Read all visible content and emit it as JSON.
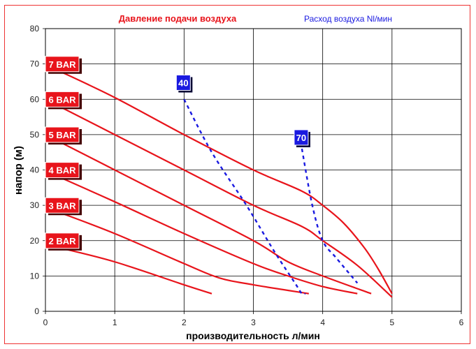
{
  "chart_data": {
    "type": "line",
    "legend": {
      "pressure_title": "Давление подачи воздуха",
      "flow_title": "Расход воздуха Nl/мин",
      "pressure_color": "#e8141b",
      "flow_color": "#1a1ae0"
    },
    "xlabel": "производительность л/мин",
    "ylabel": "напор (м)",
    "xlim": [
      0,
      6
    ],
    "ylim": [
      0,
      80
    ],
    "xticks": [
      "0",
      "1",
      "2",
      "3",
      "4",
      "5",
      "6"
    ],
    "yticks": [
      "0",
      "10",
      "20",
      "30",
      "40",
      "50",
      "60",
      "70",
      "80"
    ],
    "grid": true,
    "pressure_series": [
      {
        "name": "7 BAR",
        "points": [
          [
            0.2,
            68
          ],
          [
            1,
            60.5
          ],
          [
            2,
            50
          ],
          [
            3,
            40
          ],
          [
            3.7,
            34
          ],
          [
            4,
            30
          ],
          [
            4.3,
            25
          ],
          [
            4.6,
            18
          ],
          [
            4.8,
            12
          ],
          [
            5,
            5
          ]
        ]
      },
      {
        "name": "6 BAR",
        "points": [
          [
            0.2,
            58
          ],
          [
            1,
            50
          ],
          [
            2,
            40
          ],
          [
            3,
            30
          ],
          [
            3.7,
            24
          ],
          [
            4,
            20
          ],
          [
            4.5,
            13
          ],
          [
            5,
            4
          ]
        ]
      },
      {
        "name": "5 BAR",
        "points": [
          [
            0.2,
            48
          ],
          [
            1,
            40
          ],
          [
            2,
            30
          ],
          [
            3,
            20
          ],
          [
            3.5,
            14
          ],
          [
            4,
            10
          ],
          [
            4.7,
            5
          ]
        ]
      },
      {
        "name": "4 BAR",
        "points": [
          [
            0.2,
            38
          ],
          [
            1,
            31
          ],
          [
            2,
            22
          ],
          [
            3,
            13.5
          ],
          [
            3.5,
            10
          ],
          [
            4,
            7
          ],
          [
            4.5,
            5
          ]
        ]
      },
      {
        "name": "3 BAR",
        "points": [
          [
            0.2,
            28
          ],
          [
            1,
            22
          ],
          [
            2,
            13.5
          ],
          [
            2.5,
            9.5
          ],
          [
            3,
            7.5
          ],
          [
            3.8,
            5
          ]
        ]
      },
      {
        "name": "2 BAR",
        "points": [
          [
            0.2,
            18
          ],
          [
            1,
            14
          ],
          [
            2,
            7.5
          ],
          [
            2.4,
            5
          ]
        ]
      }
    ],
    "flow_series": [
      {
        "name": "40",
        "points": [
          [
            2,
            60
          ],
          [
            2.4,
            45
          ],
          [
            2.9,
            30
          ],
          [
            3.3,
            17
          ],
          [
            3.6,
            8
          ],
          [
            3.7,
            5
          ],
          [
            3.75,
            5
          ]
        ],
        "label_at": [
          2,
          64.5
        ]
      },
      {
        "name": "70",
        "points": [
          [
            3.7,
            46
          ],
          [
            3.85,
            30
          ],
          [
            4,
            20
          ],
          [
            4.2,
            15
          ],
          [
            4.5,
            8
          ]
        ],
        "label_at": [
          3.7,
          49
        ]
      }
    ]
  }
}
